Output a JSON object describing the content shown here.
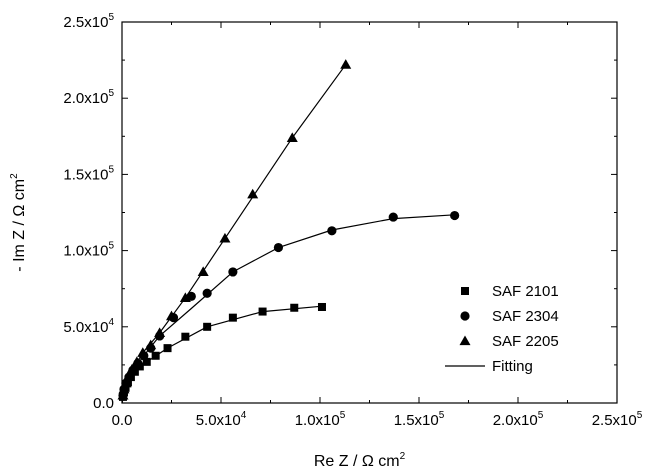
{
  "chart_data": {
    "type": "scatter",
    "xlabel": {
      "main": "Re Z / Ω cm",
      "sup": "2"
    },
    "ylabel": {
      "main": "- Im Z / Ω cm",
      "sup": "2"
    },
    "xlim": [
      0,
      250000
    ],
    "ylim": [
      0,
      250000
    ],
    "grid": false,
    "legend_position": "bottom-right",
    "x_ticks": [
      {
        "value": 0,
        "main": "0.0",
        "sup": ""
      },
      {
        "value": 50000,
        "main": "5.0x10",
        "sup": "4"
      },
      {
        "value": 100000,
        "main": "1.0x10",
        "sup": "5"
      },
      {
        "value": 150000,
        "main": "1.5x10",
        "sup": "5"
      },
      {
        "value": 200000,
        "main": "2.0x10",
        "sup": "5"
      },
      {
        "value": 250000,
        "main": "2.5x10",
        "sup": "5"
      }
    ],
    "y_ticks": [
      {
        "value": 0,
        "main": "0.0",
        "sup": ""
      },
      {
        "value": 50000,
        "main": "5.0x10",
        "sup": "4"
      },
      {
        "value": 100000,
        "main": "1.0x10",
        "sup": "5"
      },
      {
        "value": 150000,
        "main": "1.5x10",
        "sup": "5"
      },
      {
        "value": 200000,
        "main": "2.0x10",
        "sup": "5"
      },
      {
        "value": 250000,
        "main": "2.5x10",
        "sup": "5"
      }
    ],
    "series": [
      {
        "name": "SAF 2101",
        "marker": "square",
        "points": [
          [
            500,
            4000
          ],
          [
            1000,
            7000
          ],
          [
            1800,
            10000
          ],
          [
            3000,
            13500
          ],
          [
            4500,
            17000
          ],
          [
            6500,
            20500
          ],
          [
            9000,
            24000
          ],
          [
            12500,
            27000
          ],
          [
            17000,
            31000
          ],
          [
            23000,
            36000
          ],
          [
            32000,
            43500
          ],
          [
            43000,
            50000
          ],
          [
            56000,
            56000
          ],
          [
            71000,
            60000
          ],
          [
            87000,
            62500
          ],
          [
            101000,
            63000
          ]
        ],
        "fit": [
          [
            0,
            0
          ],
          [
            1000,
            7000
          ],
          [
            3000,
            13500
          ],
          [
            6500,
            20500
          ],
          [
            12500,
            27000
          ],
          [
            23000,
            36000
          ],
          [
            43000,
            50000
          ],
          [
            71000,
            60000
          ],
          [
            101000,
            63500
          ]
        ]
      },
      {
        "name": "SAF 2304",
        "marker": "circle",
        "points": [
          [
            500,
            5000
          ],
          [
            1000,
            9000
          ],
          [
            2000,
            13000
          ],
          [
            3500,
            17000
          ],
          [
            5500,
            21500
          ],
          [
            8000,
            26000
          ],
          [
            11000,
            31000
          ],
          [
            14500,
            36000
          ],
          [
            19000,
            44000
          ],
          [
            26000,
            56000
          ],
          [
            35000,
            70000
          ],
          [
            43000,
            72000
          ],
          [
            56000,
            86000
          ],
          [
            79000,
            102000
          ],
          [
            106000,
            113000
          ],
          [
            137000,
            122000
          ],
          [
            168000,
            123000
          ]
        ],
        "fit": [
          [
            0,
            0
          ],
          [
            2000,
            13000
          ],
          [
            5500,
            21500
          ],
          [
            11000,
            31000
          ],
          [
            19000,
            44000
          ],
          [
            35000,
            62000
          ],
          [
            56000,
            86000
          ],
          [
            79000,
            102000
          ],
          [
            106000,
            113500
          ],
          [
            137000,
            121000
          ],
          [
            168000,
            123500
          ]
        ]
      },
      {
        "name": "SAF 2205",
        "marker": "triangle",
        "points": [
          [
            500,
            5000
          ],
          [
            1000,
            9000
          ],
          [
            2000,
            13000
          ],
          [
            3500,
            18000
          ],
          [
            5000,
            22000
          ],
          [
            7500,
            27000
          ],
          [
            10500,
            33000
          ],
          [
            14500,
            38000
          ],
          [
            19000,
            46000
          ],
          [
            25000,
            57000
          ],
          [
            32000,
            69000
          ],
          [
            41000,
            86000
          ],
          [
            52000,
            108000
          ],
          [
            66000,
            137000
          ],
          [
            86000,
            174000
          ],
          [
            113000,
            222000
          ]
        ],
        "fit": [
          [
            0,
            0
          ],
          [
            3500,
            18000
          ],
          [
            10500,
            33000
          ],
          [
            19000,
            46000
          ],
          [
            32000,
            69000
          ],
          [
            52000,
            108000
          ],
          [
            86000,
            174000
          ],
          [
            113000,
            222000
          ]
        ]
      }
    ],
    "fit_label": "Fitting"
  }
}
